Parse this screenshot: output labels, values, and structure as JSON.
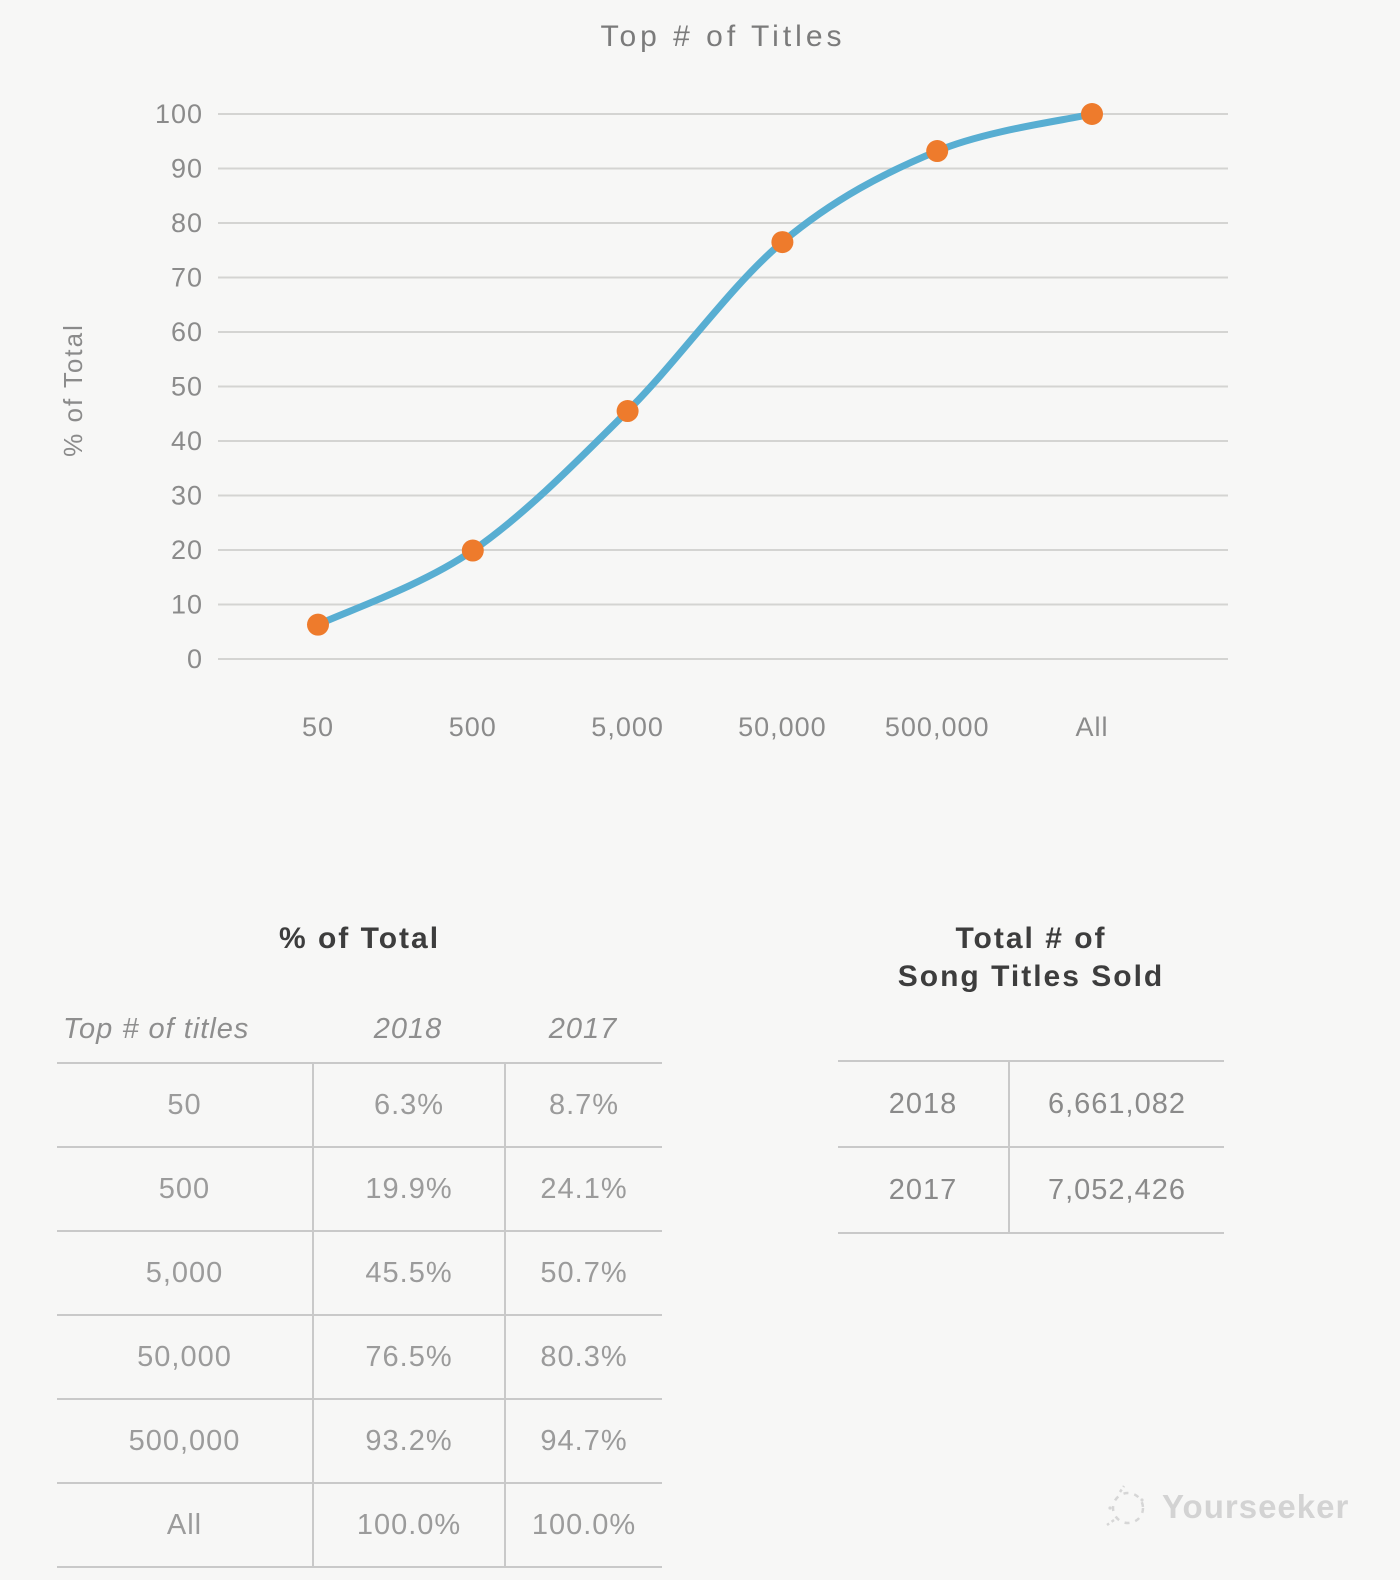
{
  "page": {
    "background": "#f7f7f6"
  },
  "chart_data": [
    {
      "type": "line",
      "title": "Top # of Titles",
      "xlabel": "",
      "ylabel": "% of Total",
      "categories": [
        "50",
        "500",
        "5,000",
        "50,000",
        "500,000",
        "All"
      ],
      "series": [
        {
          "name": "2018",
          "values": [
            6.3,
            19.9,
            45.5,
            76.5,
            93.2,
            100.0
          ]
        }
      ],
      "ylim": [
        0,
        100
      ],
      "ytick_step": 10,
      "grid": true,
      "legend_position": "none",
      "line_color": "#58aed2",
      "marker_color": "#ee7b2c"
    },
    {
      "type": "table",
      "title": "% of Total",
      "columns": [
        "Top # of titles",
        "2018",
        "2017"
      ],
      "rows": [
        [
          "50",
          "6.3%",
          "8.7%"
        ],
        [
          "500",
          "19.9%",
          "24.1%"
        ],
        [
          "5,000",
          "45.5%",
          "50.7%"
        ],
        [
          "50,000",
          "76.5%",
          "80.3%"
        ],
        [
          "500,000",
          "93.2%",
          "94.7%"
        ],
        [
          "All",
          "100.0%",
          "100.0%"
        ]
      ]
    },
    {
      "type": "table",
      "title": "Total # of Song Titles Sold",
      "title_line1": "Total # of",
      "title_line2": "Song Titles Sold",
      "rows": [
        [
          "2018",
          "6,661,082"
        ],
        [
          "2017",
          "7,052,426"
        ]
      ]
    }
  ],
  "watermark": {
    "text": "Yourseeker",
    "icon": "sketch-circle-logo"
  }
}
